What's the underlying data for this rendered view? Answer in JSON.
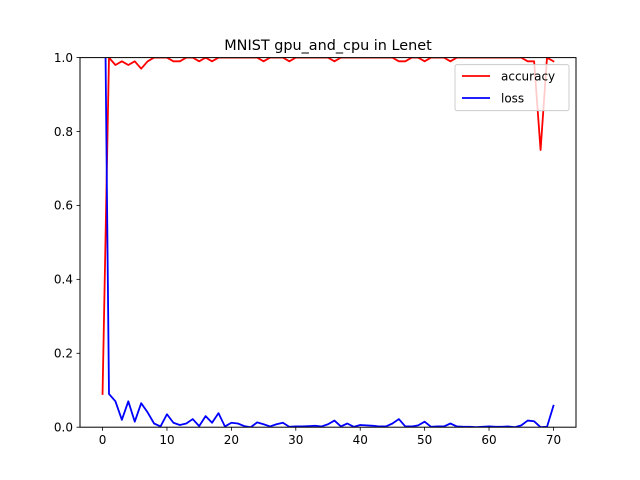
{
  "chart_data": {
    "type": "line",
    "title": "MNIST gpu_and_cpu in Lenet",
    "xlabel": "",
    "ylabel": "",
    "xlim": [
      -3.5,
      73.5
    ],
    "ylim": [
      0,
      1
    ],
    "x_ticks": [
      0,
      10,
      20,
      30,
      40,
      50,
      60,
      70
    ],
    "y_ticks": [
      0.0,
      0.2,
      0.4,
      0.6,
      0.8,
      1.0
    ],
    "x_tick_labels": [
      "0",
      "10",
      "20",
      "30",
      "40",
      "50",
      "60",
      "70"
    ],
    "y_tick_labels": [
      "0.0",
      "0.2",
      "0.4",
      "0.6",
      "0.8",
      "1.0"
    ],
    "grid": false,
    "legend_position": "top-right",
    "x": [
      0,
      1,
      2,
      3,
      4,
      5,
      6,
      7,
      8,
      9,
      10,
      11,
      12,
      13,
      14,
      15,
      16,
      17,
      18,
      19,
      20,
      21,
      22,
      23,
      24,
      25,
      26,
      27,
      28,
      29,
      30,
      31,
      32,
      33,
      34,
      35,
      36,
      37,
      38,
      39,
      40,
      41,
      42,
      43,
      44,
      45,
      46,
      47,
      48,
      49,
      50,
      51,
      52,
      53,
      54,
      55,
      56,
      57,
      58,
      59,
      60,
      61,
      62,
      63,
      64,
      65,
      66,
      67,
      68,
      69,
      70
    ],
    "series": [
      {
        "name": "accuracy",
        "color": "#ff0000",
        "values": [
          0.09,
          1.0,
          0.98,
          0.99,
          0.98,
          0.99,
          0.97,
          0.99,
          1.0,
          1.0,
          1.0,
          0.99,
          0.99,
          1.0,
          1.0,
          0.99,
          1.0,
          0.99,
          1.0,
          1.0,
          1.0,
          1.0,
          1.0,
          1.0,
          1.0,
          0.99,
          1.0,
          1.0,
          1.0,
          0.99,
          1.0,
          1.0,
          1.0,
          1.0,
          1.0,
          1.0,
          0.99,
          1.0,
          1.0,
          1.0,
          1.0,
          1.0,
          1.0,
          1.0,
          1.0,
          1.0,
          0.99,
          0.99,
          1.0,
          1.0,
          0.99,
          1.0,
          1.0,
          1.0,
          0.99,
          1.0,
          1.0,
          1.0,
          1.0,
          1.0,
          1.0,
          1.0,
          1.0,
          1.0,
          1.0,
          1.0,
          0.99,
          0.99,
          0.75,
          1.0,
          0.99
        ]
      },
      {
        "name": "loss",
        "color": "#0000ff",
        "values": [
          1.8,
          0.09,
          0.07,
          0.02,
          0.07,
          0.015,
          0.065,
          0.04,
          0.01,
          0.002,
          0.035,
          0.012,
          0.006,
          0.01,
          0.022,
          0.003,
          0.03,
          0.012,
          0.038,
          0.002,
          0.012,
          0.01,
          0.003,
          0.0,
          0.013,
          0.008,
          0.002,
          0.008,
          0.012,
          0.001,
          0.002,
          0.002,
          0.003,
          0.004,
          0.002,
          0.008,
          0.018,
          0.002,
          0.01,
          0.001,
          0.006,
          0.005,
          0.004,
          0.002,
          0.002,
          0.01,
          0.022,
          0.002,
          0.002,
          0.005,
          0.015,
          0.001,
          0.002,
          0.002,
          0.01,
          0.002,
          0.001,
          0.001,
          0.0,
          0.001,
          0.002,
          0.001,
          0.001,
          0.002,
          0.0,
          0.005,
          0.018,
          0.016,
          0.0,
          0.001,
          0.058
        ]
      }
    ]
  }
}
